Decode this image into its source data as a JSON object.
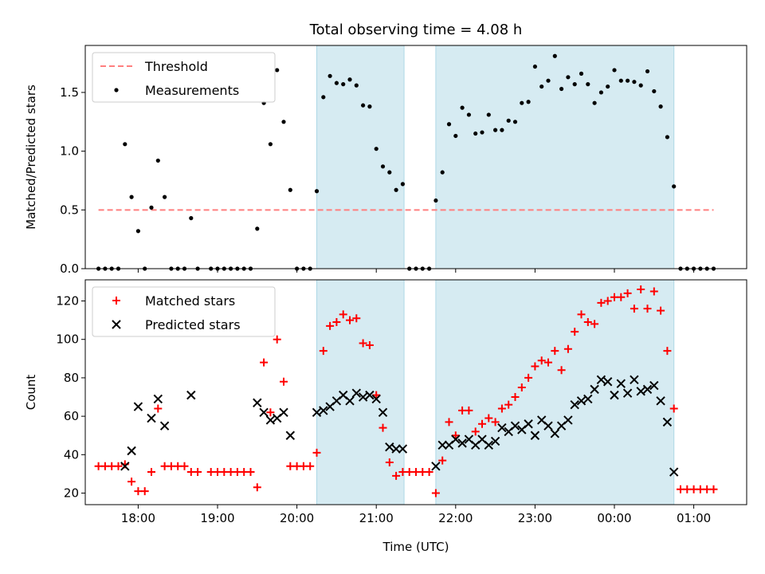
{
  "chart_data": [
    {
      "type": "scatter",
      "title": "Total observing time = 4.08 h",
      "xlabel": "",
      "ylabel": "Matched/Predicted stars",
      "xlim": [
        "17:20",
        "01:40"
      ],
      "ylim": [
        0,
        1.9
      ],
      "x_ticks": [
        "18:00",
        "19:00",
        "20:00",
        "21:00",
        "22:00",
        "23:00",
        "00:00",
        "01:00"
      ],
      "y_ticks": [
        "0.0",
        "0.5",
        "1.0",
        "1.5"
      ],
      "legend_position": "top-left",
      "grid": false,
      "shaded_intervals": [
        [
          "20:15",
          "21:21"
        ],
        [
          "21:45",
          "00:45"
        ]
      ],
      "shade_color": "#add8e6",
      "series": [
        {
          "name": "Threshold",
          "style": "dashed-line",
          "color": "#ff7f7f",
          "points": [
            [
              "17:30",
              0.5
            ],
            [
              "01:15",
              0.5
            ]
          ]
        },
        {
          "name": "Measurements",
          "style": "dot",
          "color": "#000000",
          "points": [
            [
              "17:30",
              0
            ],
            [
              "17:35",
              0
            ],
            [
              "17:40",
              0
            ],
            [
              "17:45",
              0
            ],
            [
              "17:50",
              1.06
            ],
            [
              "17:55",
              0.61
            ],
            [
              "18:00",
              0.32
            ],
            [
              "18:05",
              0
            ],
            [
              "18:10",
              0.52
            ],
            [
              "18:15",
              0.92
            ],
            [
              "18:20",
              0.61
            ],
            [
              "18:25",
              0
            ],
            [
              "18:30",
              0
            ],
            [
              "18:35",
              0
            ],
            [
              "18:40",
              0.43
            ],
            [
              "18:45",
              0
            ],
            [
              "18:55",
              0
            ],
            [
              "19:00",
              0
            ],
            [
              "19:05",
              0
            ],
            [
              "19:10",
              0
            ],
            [
              "19:15",
              0
            ],
            [
              "19:20",
              0
            ],
            [
              "19:25",
              0
            ],
            [
              "19:30",
              0.34
            ],
            [
              "19:35",
              1.41
            ],
            [
              "19:40",
              1.06
            ],
            [
              "19:45",
              1.69
            ],
            [
              "19:50",
              1.25
            ],
            [
              "19:55",
              0.67
            ],
            [
              "20:00",
              0
            ],
            [
              "20:05",
              0
            ],
            [
              "20:10",
              0
            ],
            [
              "20:15",
              0.66
            ],
            [
              "20:20",
              1.46
            ],
            [
              "20:25",
              1.64
            ],
            [
              "20:30",
              1.58
            ],
            [
              "20:35",
              1.57
            ],
            [
              "20:40",
              1.61
            ],
            [
              "20:45",
              1.56
            ],
            [
              "20:50",
              1.39
            ],
            [
              "20:55",
              1.38
            ],
            [
              "21:00",
              1.02
            ],
            [
              "21:05",
              0.87
            ],
            [
              "21:10",
              0.82
            ],
            [
              "21:15",
              0.67
            ],
            [
              "21:20",
              0.72
            ],
            [
              "21:25",
              0
            ],
            [
              "21:30",
              0
            ],
            [
              "21:35",
              0
            ],
            [
              "21:40",
              0
            ],
            [
              "21:45",
              0.58
            ],
            [
              "21:50",
              0.82
            ],
            [
              "21:55",
              1.23
            ],
            [
              "22:00",
              1.13
            ],
            [
              "22:05",
              1.37
            ],
            [
              "22:10",
              1.31
            ],
            [
              "22:15",
              1.15
            ],
            [
              "22:20",
              1.16
            ],
            [
              "22:25",
              1.31
            ],
            [
              "22:30",
              1.18
            ],
            [
              "22:35",
              1.18
            ],
            [
              "22:40",
              1.26
            ],
            [
              "22:45",
              1.25
            ],
            [
              "22:50",
              1.41
            ],
            [
              "22:55",
              1.42
            ],
            [
              "23:00",
              1.72
            ],
            [
              "23:05",
              1.55
            ],
            [
              "23:10",
              1.6
            ],
            [
              "23:15",
              1.81
            ],
            [
              "23:20",
              1.53
            ],
            [
              "23:25",
              1.63
            ],
            [
              "23:30",
              1.57
            ],
            [
              "23:35",
              1.66
            ],
            [
              "23:40",
              1.57
            ],
            [
              "23:45",
              1.41
            ],
            [
              "23:50",
              1.5
            ],
            [
              "23:55",
              1.55
            ],
            [
              "00:00",
              1.69
            ],
            [
              "00:05",
              1.6
            ],
            [
              "00:10",
              1.6
            ],
            [
              "00:15",
              1.59
            ],
            [
              "00:20",
              1.56
            ],
            [
              "00:25",
              1.68
            ],
            [
              "00:30",
              1.51
            ],
            [
              "00:35",
              1.38
            ],
            [
              "00:40",
              1.12
            ],
            [
              "00:45",
              0.7
            ],
            [
              "00:50",
              0
            ],
            [
              "00:55",
              0
            ],
            [
              "01:00",
              0
            ],
            [
              "01:05",
              0
            ],
            [
              "01:10",
              0
            ],
            [
              "01:15",
              0
            ]
          ]
        }
      ]
    },
    {
      "type": "scatter",
      "title": "",
      "xlabel": "Time (UTC)",
      "ylabel": "Count",
      "xlim": [
        "17:20",
        "01:40"
      ],
      "ylim": [
        14,
        131
      ],
      "x_ticks": [
        "18:00",
        "19:00",
        "20:00",
        "21:00",
        "22:00",
        "23:00",
        "00:00",
        "01:00"
      ],
      "y_ticks": [
        "20",
        "40",
        "60",
        "80",
        "100",
        "120"
      ],
      "legend_position": "top-left",
      "grid": false,
      "shaded_intervals": [
        [
          "20:15",
          "21:21"
        ],
        [
          "21:45",
          "00:45"
        ]
      ],
      "shade_color": "#add8e6",
      "series": [
        {
          "name": "Matched stars",
          "style": "plus",
          "color": "#ff0000",
          "points": [
            [
              "17:30",
              34
            ],
            [
              "17:35",
              34
            ],
            [
              "17:40",
              34
            ],
            [
              "17:45",
              34
            ],
            [
              "17:50",
              35
            ],
            [
              "17:55",
              26
            ],
            [
              "18:00",
              21
            ],
            [
              "18:05",
              21
            ],
            [
              "18:10",
              31
            ],
            [
              "18:15",
              64
            ],
            [
              "18:20",
              34
            ],
            [
              "18:25",
              34
            ],
            [
              "18:30",
              34
            ],
            [
              "18:35",
              34
            ],
            [
              "18:40",
              31
            ],
            [
              "18:45",
              31
            ],
            [
              "18:55",
              31
            ],
            [
              "19:00",
              31
            ],
            [
              "19:05",
              31
            ],
            [
              "19:10",
              31
            ],
            [
              "19:15",
              31
            ],
            [
              "19:20",
              31
            ],
            [
              "19:25",
              31
            ],
            [
              "19:30",
              23
            ],
            [
              "19:35",
              88
            ],
            [
              "19:40",
              62
            ],
            [
              "19:45",
              100
            ],
            [
              "19:50",
              78
            ],
            [
              "19:55",
              34
            ],
            [
              "20:00",
              34
            ],
            [
              "20:05",
              34
            ],
            [
              "20:10",
              34
            ],
            [
              "20:15",
              41
            ],
            [
              "20:20",
              94
            ],
            [
              "20:25",
              107
            ],
            [
              "20:30",
              109
            ],
            [
              "20:35",
              113
            ],
            [
              "20:40",
              110
            ],
            [
              "20:45",
              111
            ],
            [
              "20:50",
              98
            ],
            [
              "20:55",
              97
            ],
            [
              "21:00",
              71
            ],
            [
              "21:05",
              54
            ],
            [
              "21:10",
              36
            ],
            [
              "21:15",
              29
            ],
            [
              "21:20",
              31
            ],
            [
              "21:25",
              31
            ],
            [
              "21:30",
              31
            ],
            [
              "21:35",
              31
            ],
            [
              "21:40",
              31
            ],
            [
              "21:45",
              20
            ],
            [
              "21:50",
              37
            ],
            [
              "21:55",
              57
            ],
            [
              "22:00",
              50
            ],
            [
              "22:05",
              63
            ],
            [
              "22:10",
              63
            ],
            [
              "22:15",
              52
            ],
            [
              "22:20",
              56
            ],
            [
              "22:25",
              59
            ],
            [
              "22:30",
              57
            ],
            [
              "22:35",
              64
            ],
            [
              "22:40",
              66
            ],
            [
              "22:45",
              70
            ],
            [
              "22:50",
              75
            ],
            [
              "22:55",
              80
            ],
            [
              "23:00",
              86
            ],
            [
              "23:05",
              89
            ],
            [
              "23:10",
              88
            ],
            [
              "23:15",
              94
            ],
            [
              "23:20",
              84
            ],
            [
              "23:25",
              95
            ],
            [
              "23:30",
              104
            ],
            [
              "23:35",
              113
            ],
            [
              "23:40",
              109
            ],
            [
              "23:45",
              108
            ],
            [
              "23:50",
              119
            ],
            [
              "23:55",
              120
            ],
            [
              "00:00",
              122
            ],
            [
              "00:05",
              122
            ],
            [
              "00:10",
              124
            ],
            [
              "00:15",
              116
            ],
            [
              "00:20",
              126
            ],
            [
              "00:25",
              116
            ],
            [
              "00:30",
              125
            ],
            [
              "00:35",
              115
            ],
            [
              "00:40",
              94
            ],
            [
              "00:45",
              64
            ],
            [
              "00:50",
              22
            ],
            [
              "00:55",
              22
            ],
            [
              "01:00",
              22
            ],
            [
              "01:05",
              22
            ],
            [
              "01:10",
              22
            ],
            [
              "01:15",
              22
            ]
          ]
        },
        {
          "name": "Predicted stars",
          "style": "x",
          "color": "#000000",
          "points": [
            [
              "17:50",
              34
            ],
            [
              "17:55",
              42
            ],
            [
              "18:00",
              65
            ],
            [
              "18:10",
              59
            ],
            [
              "18:15",
              69
            ],
            [
              "18:20",
              55
            ],
            [
              "18:40",
              71
            ],
            [
              "19:30",
              67
            ],
            [
              "19:35",
              62
            ],
            [
              "19:40",
              58
            ],
            [
              "19:45",
              59
            ],
            [
              "19:50",
              62
            ],
            [
              "19:55",
              50
            ],
            [
              "20:15",
              62
            ],
            [
              "20:20",
              63
            ],
            [
              "20:25",
              65
            ],
            [
              "20:30",
              68
            ],
            [
              "20:35",
              71
            ],
            [
              "20:40",
              68
            ],
            [
              "20:45",
              72
            ],
            [
              "20:50",
              70
            ],
            [
              "20:55",
              71
            ],
            [
              "21:00",
              69
            ],
            [
              "21:05",
              62
            ],
            [
              "21:10",
              44
            ],
            [
              "21:15",
              43
            ],
            [
              "21:20",
              43
            ],
            [
              "21:45",
              34
            ],
            [
              "21:50",
              45
            ],
            [
              "21:55",
              45
            ],
            [
              "22:00",
              48
            ],
            [
              "22:05",
              46
            ],
            [
              "22:10",
              48
            ],
            [
              "22:15",
              45
            ],
            [
              "22:20",
              48
            ],
            [
              "22:25",
              45
            ],
            [
              "22:30",
              47
            ],
            [
              "22:35",
              54
            ],
            [
              "22:40",
              52
            ],
            [
              "22:45",
              55
            ],
            [
              "22:50",
              53
            ],
            [
              "22:55",
              56
            ],
            [
              "23:00",
              50
            ],
            [
              "23:05",
              58
            ],
            [
              "23:10",
              55
            ],
            [
              "23:15",
              51
            ],
            [
              "23:20",
              55
            ],
            [
              "23:25",
              58
            ],
            [
              "23:30",
              66
            ],
            [
              "23:35",
              68
            ],
            [
              "23:40",
              69
            ],
            [
              "23:45",
              74
            ],
            [
              "23:50",
              79
            ],
            [
              "23:55",
              78
            ],
            [
              "00:00",
              71
            ],
            [
              "00:05",
              77
            ],
            [
              "00:10",
              72
            ],
            [
              "00:15",
              79
            ],
            [
              "00:20",
              73
            ],
            [
              "00:25",
              74
            ],
            [
              "00:30",
              76
            ],
            [
              "00:35",
              68
            ],
            [
              "00:40",
              57
            ],
            [
              "00:45",
              31
            ]
          ]
        }
      ]
    }
  ]
}
